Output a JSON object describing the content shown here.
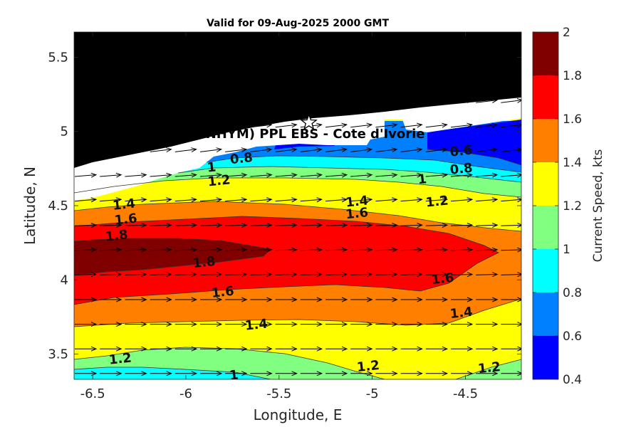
{
  "title": "Valid for 09-Aug-2025 2000 GMT",
  "site_label": "A (ONHYM) PPL EBS  - Cote d'Ivorie",
  "colors": {
    "land": "#000000",
    "coast": "#ffffff",
    "bands": [
      "#0000ff",
      "#0080ff",
      "#00ffff",
      "#80ff80",
      "#ffff00",
      "#ff8000",
      "#ff0000",
      "#800000"
    ]
  },
  "chart_data": {
    "type": "heatmap",
    "xlabel": "Longitude, E",
    "ylabel": "Latitude, N",
    "xlim": [
      -6.6,
      -4.2
    ],
    "ylim": [
      3.33,
      5.67
    ],
    "xticks": [
      "-6.5",
      "-6",
      "-5.5",
      "-5",
      "-4.5"
    ],
    "xtick_values": [
      -6.5,
      -6,
      -5.5,
      -5,
      -4.5
    ],
    "yticks": [
      "3.5",
      "4",
      "4.5",
      "5",
      "5.5"
    ],
    "ytick_values": [
      3.5,
      4,
      4.5,
      5,
      5.5
    ],
    "colorbar": {
      "label": "Current Speed,  kts",
      "range": [
        0.4,
        2
      ],
      "ticks": [
        "0.4",
        "0.6",
        "0.8",
        "1",
        "1.2",
        "1.4",
        "1.6",
        "1.8",
        "2"
      ],
      "tick_values": [
        0.4,
        0.6,
        0.8,
        1,
        1.2,
        1.4,
        1.6,
        1.8,
        2
      ]
    },
    "contour_labels": [
      {
        "text": "0.8",
        "lon": -5.7,
        "lat": 4.79
      },
      {
        "text": "0.6",
        "lon": -4.52,
        "lat": 4.84
      },
      {
        "text": "0.8",
        "lon": -4.52,
        "lat": 4.72
      },
      {
        "text": "1",
        "lon": -5.86,
        "lat": 4.73
      },
      {
        "text": "1.2",
        "lon": -5.82,
        "lat": 4.64
      },
      {
        "text": "1",
        "lon": -4.73,
        "lat": 4.65
      },
      {
        "text": "1.2",
        "lon": -4.65,
        "lat": 4.5
      },
      {
        "text": "1.4",
        "lon": -6.33,
        "lat": 4.48
      },
      {
        "text": "1.4",
        "lon": -5.08,
        "lat": 4.5
      },
      {
        "text": "1.6",
        "lon": -5.08,
        "lat": 4.42
      },
      {
        "text": "1.6",
        "lon": -6.32,
        "lat": 4.38
      },
      {
        "text": "1.8",
        "lon": -6.37,
        "lat": 4.27
      },
      {
        "text": "1.8",
        "lon": -5.9,
        "lat": 4.09
      },
      {
        "text": "1.6",
        "lon": -5.8,
        "lat": 3.89
      },
      {
        "text": "1.6",
        "lon": -4.62,
        "lat": 3.98
      },
      {
        "text": "1.4",
        "lon": -5.62,
        "lat": 3.67
      },
      {
        "text": "1.4",
        "lon": -4.52,
        "lat": 3.75
      },
      {
        "text": "1.2",
        "lon": -6.35,
        "lat": 3.44
      },
      {
        "text": "1.2",
        "lon": -5.02,
        "lat": 3.39
      },
      {
        "text": "1.2",
        "lon": -4.37,
        "lat": 3.38
      },
      {
        "text": "1",
        "lon": -5.74,
        "lat": 3.33
      }
    ],
    "site_marker": {
      "lon": -5.34,
      "lat": 5.06
    }
  }
}
